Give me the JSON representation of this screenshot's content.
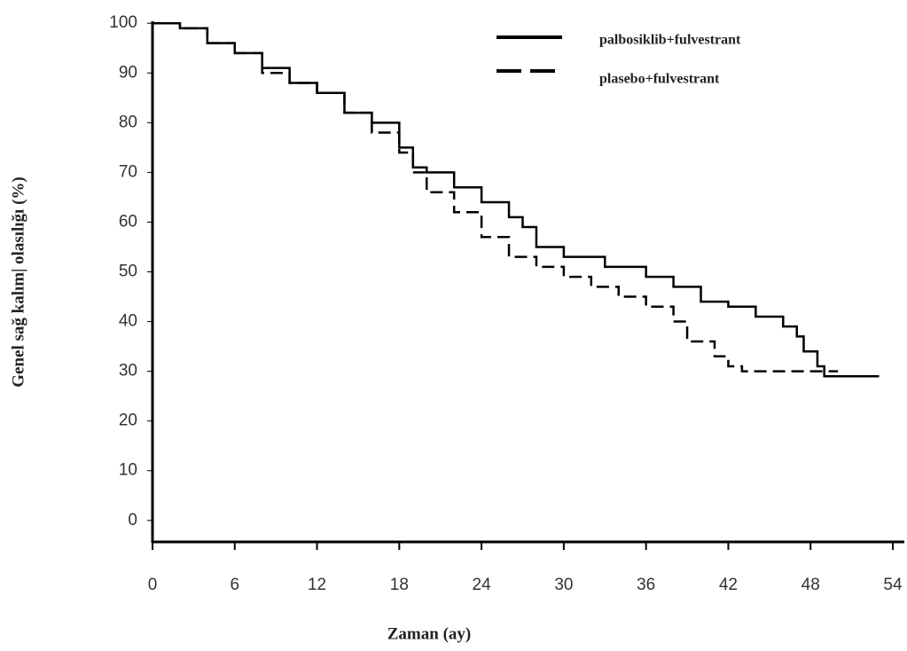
{
  "chart_data": {
    "type": "step",
    "xlabel": "Zaman (ay)",
    "ylabel": "Genel sağ kalım| olasılığı (%)",
    "xlim": [
      0,
      54
    ],
    "xticks": [
      0,
      6,
      12,
      18,
      24,
      30,
      36,
      42,
      48,
      54
    ],
    "ylim": [
      -2,
      102
    ],
    "yticks": [
      0,
      10,
      20,
      30,
      40,
      50,
      60,
      70,
      80,
      90,
      100
    ],
    "legend": "upper right",
    "series": [
      {
        "name": "palbosiklib+fulvestrant",
        "color": "#000000",
        "style": "solid",
        "x": [
          0,
          2,
          4,
          6,
          8,
          10,
          12,
          14,
          16,
          18,
          19,
          20,
          22,
          24,
          26,
          27,
          28,
          30,
          33,
          36,
          38,
          40,
          42,
          44,
          46,
          47,
          47.5,
          48.5,
          49,
          53
        ],
        "values": [
          100,
          99,
          96,
          94,
          91,
          88,
          86,
          82,
          80,
          75,
          71,
          70,
          67,
          64,
          61,
          59,
          55,
          53,
          51,
          49,
          47,
          44,
          43,
          41,
          39,
          37,
          34,
          31,
          29,
          29
        ]
      },
      {
        "name": "plasebo+fulvestrant",
        "color": "#000000",
        "style": "dashed",
        "x": [
          0,
          2,
          4,
          6,
          8,
          10,
          12,
          14,
          16,
          18,
          19,
          20,
          22,
          24,
          26,
          28,
          30,
          32,
          34,
          36,
          38,
          39,
          41,
          42,
          43,
          50
        ],
        "values": [
          100,
          99,
          96,
          94,
          90,
          88,
          86,
          82,
          78,
          74,
          70,
          66,
          62,
          57,
          53,
          51,
          49,
          47,
          45,
          43,
          40,
          36,
          33,
          31,
          30,
          30
        ]
      }
    ]
  }
}
